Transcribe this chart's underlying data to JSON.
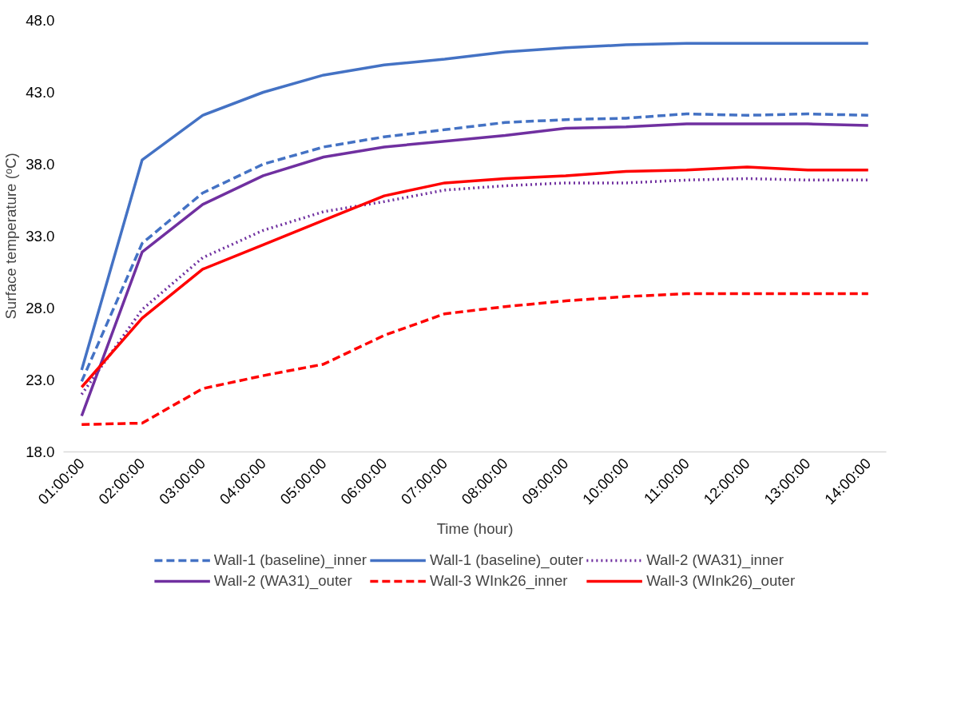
{
  "chart_data": {
    "type": "line",
    "xlabel": "Time (hour)",
    "ylabel": "Surface temperature (ᵒC)",
    "categories": [
      "01:00:00",
      "02:00:00",
      "03:00:00",
      "04:00:00",
      "05:00:00",
      "06:00:00",
      "07:00:00",
      "08:00:00",
      "09:00:00",
      "10:00:00",
      "11:00:00",
      "12:00:00",
      "13:00:00",
      "14:00:00"
    ],
    "ylim": [
      18,
      48
    ],
    "yticks": [
      {
        "value": 18,
        "label": "18.0"
      },
      {
        "value": 23,
        "label": "23.0"
      },
      {
        "value": 28,
        "label": "28.0"
      },
      {
        "value": 33,
        "label": "33.0"
      },
      {
        "value": 38,
        "label": "38.0"
      },
      {
        "value": 43,
        "label": "43.0"
      },
      {
        "value": 48,
        "label": "48.0"
      }
    ],
    "grid": false,
    "legend": "bottom",
    "marker": "none",
    "series": [
      {
        "name": "Wall-1 (baseline)_inner",
        "color": "#4472c4",
        "line_style": "dashed",
        "values": [
          22.9,
          32.5,
          36.0,
          38.0,
          39.2,
          39.9,
          40.4,
          40.9,
          41.1,
          41.2,
          41.5,
          41.4,
          41.5,
          41.4
        ]
      },
      {
        "name": "Wall-1 (baseline)_outer",
        "color": "#4472c4",
        "line_style": "solid",
        "values": [
          23.7,
          38.3,
          41.4,
          43.0,
          44.2,
          44.9,
          45.3,
          45.8,
          46.1,
          46.3,
          46.4,
          46.4,
          46.4,
          46.4
        ]
      },
      {
        "name": "Wall-2 (WA31)_inner",
        "color": "#7030a0",
        "line_style": "dotted",
        "values": [
          22.0,
          27.9,
          31.5,
          33.4,
          34.7,
          35.4,
          36.2,
          36.5,
          36.7,
          36.7,
          36.9,
          37.0,
          36.9,
          36.9
        ]
      },
      {
        "name": "Wall-2 (WA31)_outer",
        "color": "#7030a0",
        "line_style": "solid",
        "values": [
          20.5,
          31.9,
          35.2,
          37.2,
          38.5,
          39.2,
          39.6,
          40.0,
          40.5,
          40.6,
          40.8,
          40.8,
          40.8,
          40.7
        ]
      },
      {
        "name": "Wall-3 WInk26_inner",
        "color": "#ff0000",
        "line_style": "dashed",
        "values": [
          19.9,
          20.0,
          22.4,
          23.3,
          24.1,
          26.1,
          27.6,
          28.1,
          28.5,
          28.8,
          29.0,
          29.0,
          29.0,
          29.0
        ]
      },
      {
        "name": "Wall-3 (WInk26)_outer",
        "color": "#ff0000",
        "line_style": "solid",
        "values": [
          22.5,
          27.3,
          30.7,
          32.4,
          34.1,
          35.8,
          36.7,
          37.0,
          37.2,
          37.5,
          37.6,
          37.8,
          37.6,
          37.6
        ]
      }
    ]
  }
}
